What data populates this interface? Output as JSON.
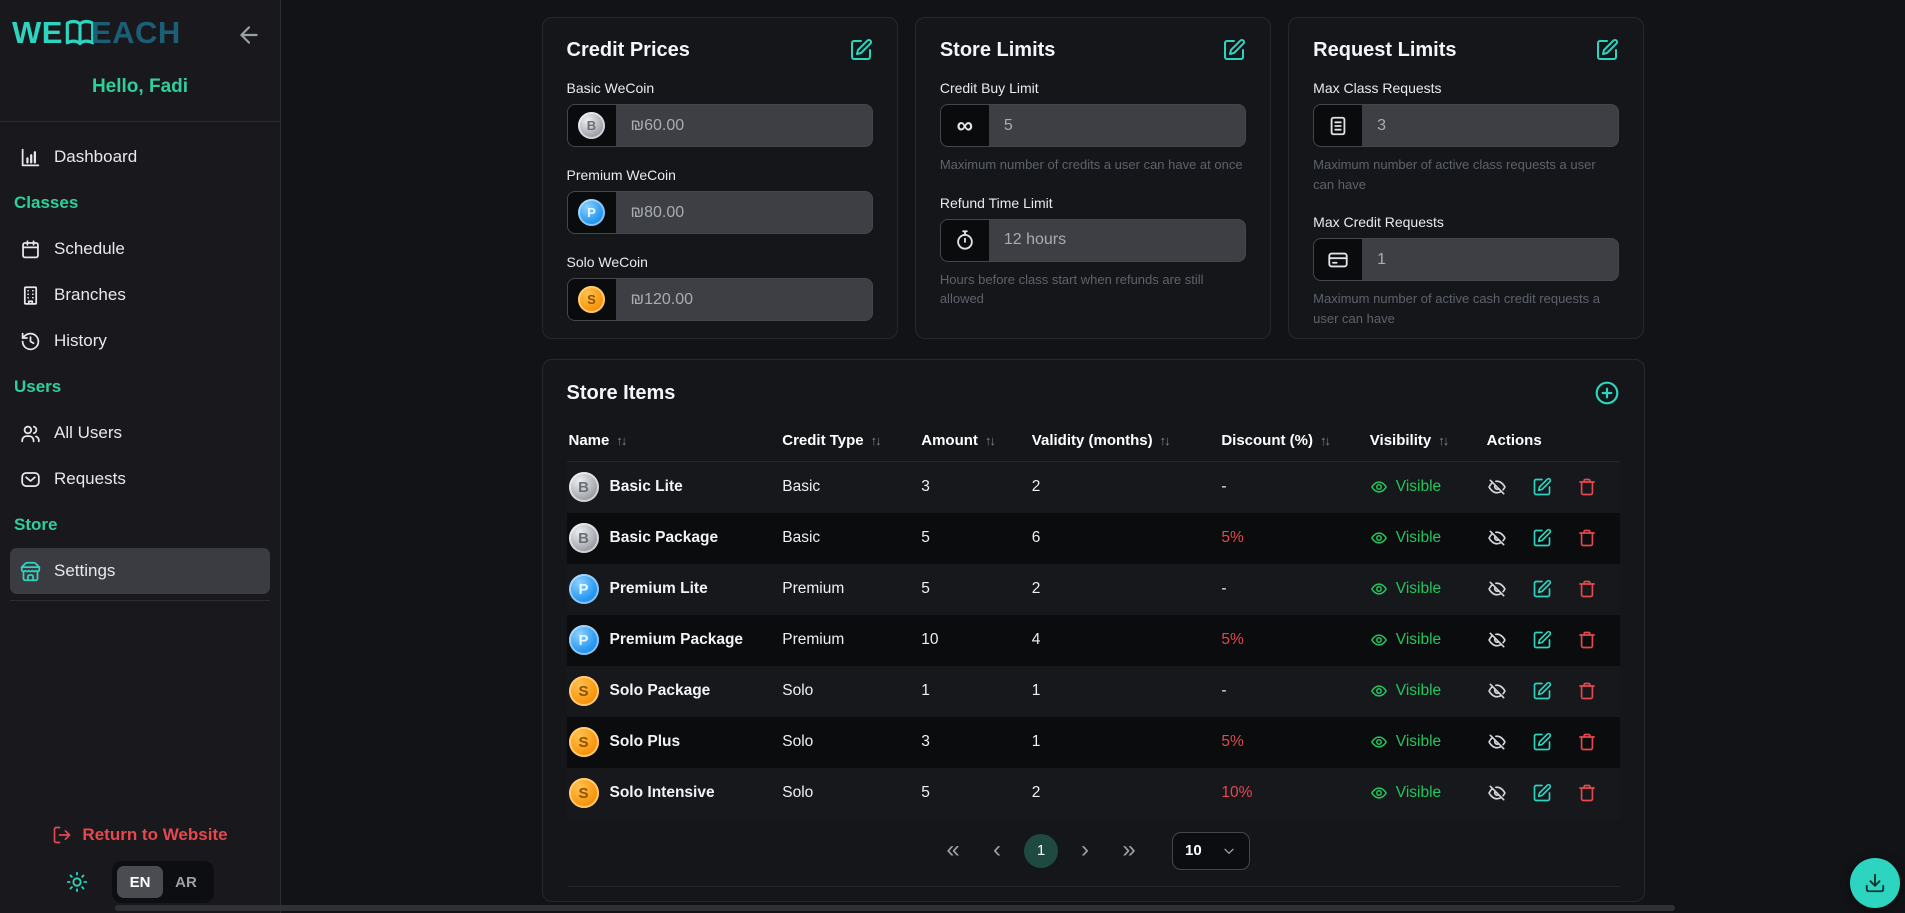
{
  "colors": {
    "accent-teal": "#2dd4bf",
    "accent-green": "#2fcf9a",
    "logo-blue": "#1d5e77",
    "status-green": "#22c55e",
    "danger-red": "#e5484d",
    "page-bg": "#121316",
    "sidebar-bg": "#19191d",
    "card-bg": "#15161a",
    "row-light": "#17181c",
    "row-dark": "#0b0c0e",
    "input-bg": "#3e3f45",
    "iconbox-bg": "#0a0b0d"
  },
  "sidebar": {
    "logo_we": "WE",
    "logo_each": "EACH",
    "greeting": "Hello, Fadi",
    "items": [
      {
        "type": "item",
        "label": "Dashboard",
        "icon": "bar-chart"
      },
      {
        "type": "section",
        "label": "Classes"
      },
      {
        "type": "item",
        "label": "Schedule",
        "icon": "calendar"
      },
      {
        "type": "item",
        "label": "Branches",
        "icon": "building"
      },
      {
        "type": "item",
        "label": "History",
        "icon": "history"
      },
      {
        "type": "section",
        "label": "Users"
      },
      {
        "type": "item",
        "label": "All Users",
        "icon": "users"
      },
      {
        "type": "item",
        "label": "Requests",
        "icon": "mail"
      },
      {
        "type": "section",
        "label": "Store"
      },
      {
        "type": "item",
        "label": "Settings",
        "icon": "store",
        "active": true
      }
    ],
    "return_label": "Return to Website",
    "lang_en": "EN",
    "lang_ar": "AR",
    "lang_selected": "EN"
  },
  "cards": {
    "credit_prices": {
      "title": "Credit Prices",
      "fields": [
        {
          "label": "Basic WeCoin",
          "value": "₪60.00",
          "coin": "basic",
          "coin_letter": "B"
        },
        {
          "label": "Premium WeCoin",
          "value": "₪80.00",
          "coin": "premium",
          "coin_letter": "P"
        },
        {
          "label": "Solo WeCoin",
          "value": "₪120.00",
          "coin": "solo",
          "coin_letter": "S"
        }
      ]
    },
    "store_limits": {
      "title": "Store Limits",
      "fields": [
        {
          "label": "Credit Buy Limit",
          "value": "5",
          "icon": "infinity",
          "helper": "Maximum number of credits a user can have at once"
        },
        {
          "label": "Refund Time Limit",
          "value": "12 hours",
          "icon": "stopwatch",
          "helper": "Hours before class start when refunds are still allowed"
        }
      ]
    },
    "request_limits": {
      "title": "Request Limits",
      "fields": [
        {
          "label": "Max Class Requests",
          "value": "3",
          "icon": "document",
          "helper": "Maximum number of active class requests a user can have"
        },
        {
          "label": "Max Credit Requests",
          "value": "1",
          "icon": "credit-card",
          "helper": "Maximum number of active cash credit requests a user can have"
        }
      ]
    }
  },
  "store_items": {
    "title": "Store Items",
    "columns": [
      {
        "label": "Name",
        "sortable": true
      },
      {
        "label": "Credit Type",
        "sortable": true
      },
      {
        "label": "Amount",
        "sortable": true
      },
      {
        "label": "Validity (months)",
        "sortable": true
      },
      {
        "label": "Discount (%)",
        "sortable": true
      },
      {
        "label": "Visibility",
        "sortable": true
      },
      {
        "label": "Actions",
        "sortable": false
      }
    ],
    "rows": [
      {
        "name": "Basic Lite",
        "coin": "basic",
        "coin_letter": "B",
        "credit_type": "Basic",
        "amount": "3",
        "validity": "2",
        "discount": "-",
        "visibility": "Visible"
      },
      {
        "name": "Basic Package",
        "coin": "basic",
        "coin_letter": "B",
        "credit_type": "Basic",
        "amount": "5",
        "validity": "6",
        "discount": "5%",
        "visibility": "Visible"
      },
      {
        "name": "Premium Lite",
        "coin": "premium",
        "coin_letter": "P",
        "credit_type": "Premium",
        "amount": "5",
        "validity": "2",
        "discount": "-",
        "visibility": "Visible"
      },
      {
        "name": "Premium Package",
        "coin": "premium",
        "coin_letter": "P",
        "credit_type": "Premium",
        "amount": "10",
        "validity": "4",
        "discount": "5%",
        "visibility": "Visible"
      },
      {
        "name": "Solo Package",
        "coin": "solo",
        "coin_letter": "S",
        "credit_type": "Solo",
        "amount": "1",
        "validity": "1",
        "discount": "-",
        "visibility": "Visible"
      },
      {
        "name": "Solo Plus",
        "coin": "solo",
        "coin_letter": "S",
        "credit_type": "Solo",
        "amount": "3",
        "validity": "1",
        "discount": "5%",
        "visibility": "Visible"
      },
      {
        "name": "Solo Intensive",
        "coin": "solo",
        "coin_letter": "S",
        "credit_type": "Solo",
        "amount": "5",
        "validity": "2",
        "discount": "10%",
        "visibility": "Visible"
      }
    ],
    "pagination": {
      "first_label": "«",
      "prev_label": "‹",
      "current_page": "1",
      "next_label": "›",
      "last_label": "»",
      "page_size": "10"
    }
  }
}
